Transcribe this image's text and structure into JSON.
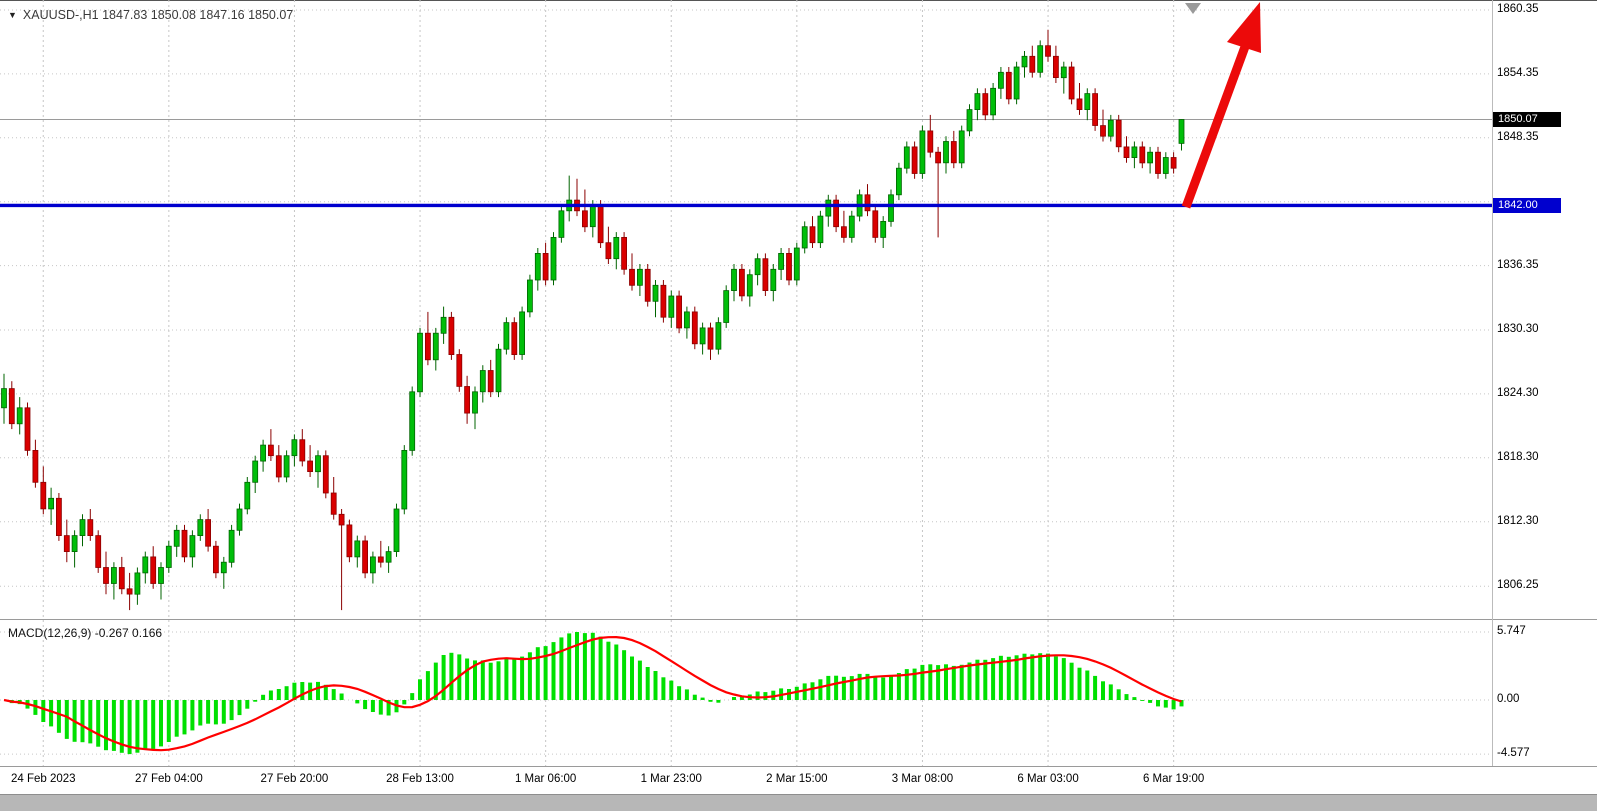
{
  "header": {
    "dropdown_icon": "▼",
    "title": "XAUUSD-,H1  1847.83 1850.08 1847.16 1850.07"
  },
  "macd_label": "MACD(12,26,9) -0.267 0.166",
  "chart_data": {
    "type": "candlestick",
    "symbol": "XAUUSD-",
    "timeframe": "H1",
    "title": "XAUUSD-,H1",
    "last_ohlc": {
      "open": 1847.83,
      "high": 1850.08,
      "low": 1847.16,
      "close": 1850.07
    },
    "current_price_label": "1850.07",
    "y_ticks": [
      "1860.35",
      "1854.35",
      "1848.35",
      "1836.35",
      "1830.30",
      "1824.30",
      "1818.30",
      "1812.30",
      "1806.25"
    ],
    "y_grid_extra": 1842.35,
    "y_range": [
      1803.5,
      1861.5
    ],
    "hline": {
      "label": "1842.00",
      "price": 1842.0,
      "color": "#0000CE"
    },
    "x_labels": [
      "24 Feb 2023",
      "27 Feb 04:00",
      "27 Feb 20:00",
      "28 Feb 13:00",
      "1 Mar 06:00",
      "1 Mar 23:00",
      "2 Mar 15:00",
      "3 Mar 08:00",
      "6 Mar 03:00",
      "6 Mar 19:00"
    ],
    "bars_per_label": 16,
    "label_start_index": 5,
    "candles": [
      [
        1823.0,
        1826.2,
        1821.5,
        1824.8
      ],
      [
        1824.8,
        1825.5,
        1821.0,
        1821.5
      ],
      [
        1821.5,
        1824.0,
        1820.5,
        1823.0
      ],
      [
        1823.0,
        1823.5,
        1818.5,
        1819.0
      ],
      [
        1819.0,
        1820.0,
        1815.5,
        1816.0
      ],
      [
        1816.0,
        1817.5,
        1813.0,
        1813.5
      ],
      [
        1813.5,
        1815.5,
        1812.0,
        1814.5
      ],
      [
        1814.5,
        1815.0,
        1810.5,
        1811.0
      ],
      [
        1811.0,
        1812.5,
        1808.5,
        1809.5
      ],
      [
        1809.5,
        1811.5,
        1808.0,
        1811.0
      ],
      [
        1811.0,
        1813.0,
        1810.0,
        1812.5
      ],
      [
        1812.5,
        1813.5,
        1810.5,
        1811.0
      ],
      [
        1811.0,
        1811.5,
        1807.5,
        1808.0
      ],
      [
        1808.0,
        1809.5,
        1805.5,
        1806.5
      ],
      [
        1806.5,
        1808.5,
        1805.0,
        1808.0
      ],
      [
        1808.0,
        1809.0,
        1805.5,
        1806.0
      ],
      [
        1806.0,
        1807.5,
        1804.0,
        1805.5
      ],
      [
        1805.5,
        1808.0,
        1804.5,
        1807.5
      ],
      [
        1807.5,
        1809.5,
        1806.5,
        1809.0
      ],
      [
        1809.0,
        1810.0,
        1806.0,
        1806.5
      ],
      [
        1806.5,
        1808.5,
        1805.0,
        1808.0
      ],
      [
        1808.0,
        1810.5,
        1807.5,
        1810.0
      ],
      [
        1810.0,
        1812.0,
        1809.0,
        1811.5
      ],
      [
        1811.5,
        1812.0,
        1808.5,
        1809.0
      ],
      [
        1809.0,
        1811.5,
        1808.0,
        1811.0
      ],
      [
        1811.0,
        1813.0,
        1810.5,
        1812.5
      ],
      [
        1812.5,
        1813.5,
        1809.5,
        1810.0
      ],
      [
        1810.0,
        1810.5,
        1807.0,
        1807.5
      ],
      [
        1807.5,
        1809.0,
        1806.0,
        1808.5
      ],
      [
        1808.5,
        1812.0,
        1808.0,
        1811.5
      ],
      [
        1811.5,
        1814.0,
        1811.0,
        1813.5
      ],
      [
        1813.5,
        1816.5,
        1813.0,
        1816.0
      ],
      [
        1816.0,
        1818.5,
        1815.0,
        1818.0
      ],
      [
        1818.0,
        1820.0,
        1817.0,
        1819.5
      ],
      [
        1819.5,
        1821.0,
        1818.0,
        1818.5
      ],
      [
        1818.5,
        1819.5,
        1816.0,
        1816.5
      ],
      [
        1816.5,
        1819.0,
        1816.0,
        1818.5
      ],
      [
        1818.5,
        1820.5,
        1817.5,
        1820.0
      ],
      [
        1820.0,
        1821.0,
        1817.5,
        1818.0
      ],
      [
        1818.0,
        1819.5,
        1816.5,
        1817.0
      ],
      [
        1817.0,
        1819.0,
        1815.5,
        1818.5
      ],
      [
        1818.5,
        1819.0,
        1814.5,
        1815.0
      ],
      [
        1815.0,
        1816.5,
        1812.5,
        1813.0
      ],
      [
        1813.0,
        1813.5,
        1804.0,
        1812.0
      ],
      [
        1812.0,
        1812.5,
        1808.5,
        1809.0
      ],
      [
        1809.0,
        1811.0,
        1808.0,
        1810.5
      ],
      [
        1810.5,
        1811.0,
        1807.0,
        1807.5
      ],
      [
        1807.5,
        1809.5,
        1806.5,
        1809.0
      ],
      [
        1809.0,
        1810.5,
        1808.0,
        1808.5
      ],
      [
        1808.5,
        1810.0,
        1807.5,
        1809.5
      ],
      [
        1809.5,
        1814.0,
        1809.0,
        1813.5
      ],
      [
        1813.5,
        1819.5,
        1813.0,
        1819.0
      ],
      [
        1819.0,
        1825.0,
        1818.5,
        1824.5
      ],
      [
        1824.5,
        1830.5,
        1824.0,
        1830.0
      ],
      [
        1830.0,
        1832.0,
        1827.0,
        1827.5
      ],
      [
        1827.5,
        1830.5,
        1826.5,
        1830.0
      ],
      [
        1830.0,
        1832.5,
        1829.0,
        1831.5
      ],
      [
        1831.5,
        1832.0,
        1827.5,
        1828.0
      ],
      [
        1828.0,
        1828.5,
        1824.5,
        1825.0
      ],
      [
        1825.0,
        1826.0,
        1821.5,
        1822.5
      ],
      [
        1822.5,
        1825.0,
        1821.0,
        1824.5
      ],
      [
        1824.5,
        1827.0,
        1823.5,
        1826.5
      ],
      [
        1826.5,
        1827.5,
        1824.0,
        1824.5
      ],
      [
        1824.5,
        1829.0,
        1824.0,
        1828.5
      ],
      [
        1828.5,
        1831.5,
        1828.0,
        1831.0
      ],
      [
        1831.0,
        1831.5,
        1827.5,
        1828.0
      ],
      [
        1828.0,
        1832.5,
        1827.5,
        1832.0
      ],
      [
        1832.0,
        1835.5,
        1831.5,
        1835.0
      ],
      [
        1835.0,
        1838.0,
        1834.0,
        1837.5
      ],
      [
        1837.5,
        1838.5,
        1834.5,
        1835.0
      ],
      [
        1835.0,
        1839.5,
        1834.5,
        1839.0
      ],
      [
        1839.0,
        1842.0,
        1838.5,
        1841.5
      ],
      [
        1841.5,
        1844.8,
        1840.5,
        1842.5
      ],
      [
        1842.5,
        1844.5,
        1841.0,
        1841.5
      ],
      [
        1841.5,
        1843.5,
        1839.5,
        1840.0
      ],
      [
        1840.0,
        1842.5,
        1839.0,
        1842.0
      ],
      [
        1842.0,
        1842.5,
        1838.0,
        1838.5
      ],
      [
        1838.5,
        1840.0,
        1836.5,
        1837.0
      ],
      [
        1837.0,
        1839.5,
        1836.0,
        1839.0
      ],
      [
        1839.0,
        1839.5,
        1835.5,
        1836.0
      ],
      [
        1836.0,
        1837.5,
        1834.0,
        1834.5
      ],
      [
        1834.5,
        1836.5,
        1833.5,
        1836.0
      ],
      [
        1836.0,
        1836.5,
        1832.5,
        1833.0
      ],
      [
        1833.0,
        1835.0,
        1831.5,
        1834.5
      ],
      [
        1834.5,
        1835.0,
        1831.0,
        1831.5
      ],
      [
        1831.5,
        1834.0,
        1830.5,
        1833.5
      ],
      [
        1833.5,
        1834.0,
        1830.0,
        1830.5
      ],
      [
        1830.5,
        1832.5,
        1829.5,
        1832.0
      ],
      [
        1832.0,
        1832.5,
        1828.5,
        1829.0
      ],
      [
        1829.0,
        1831.0,
        1828.0,
        1830.5
      ],
      [
        1830.5,
        1831.0,
        1827.5,
        1828.5
      ],
      [
        1828.5,
        1831.5,
        1828.0,
        1831.0
      ],
      [
        1831.0,
        1834.5,
        1830.5,
        1834.0
      ],
      [
        1834.0,
        1836.5,
        1833.0,
        1836.0
      ],
      [
        1836.0,
        1836.5,
        1833.0,
        1833.5
      ],
      [
        1833.5,
        1836.0,
        1832.5,
        1835.5
      ],
      [
        1835.5,
        1837.5,
        1834.5,
        1837.0
      ],
      [
        1837.0,
        1837.5,
        1833.5,
        1834.0
      ],
      [
        1834.0,
        1836.5,
        1833.0,
        1836.0
      ],
      [
        1836.0,
        1838.0,
        1835.0,
        1837.5
      ],
      [
        1837.5,
        1838.0,
        1834.5,
        1835.0
      ],
      [
        1835.0,
        1838.5,
        1834.5,
        1838.0
      ],
      [
        1838.0,
        1840.5,
        1837.5,
        1840.0
      ],
      [
        1840.0,
        1841.0,
        1838.0,
        1838.5
      ],
      [
        1838.5,
        1841.5,
        1838.0,
        1841.0
      ],
      [
        1841.0,
        1843.0,
        1840.0,
        1842.5
      ],
      [
        1842.5,
        1843.0,
        1839.5,
        1840.0
      ],
      [
        1840.0,
        1841.5,
        1838.5,
        1839.0
      ],
      [
        1839.0,
        1841.5,
        1838.5,
        1841.0
      ],
      [
        1841.0,
        1843.5,
        1840.5,
        1843.0
      ],
      [
        1843.0,
        1844.0,
        1841.0,
        1841.5
      ],
      [
        1841.5,
        1842.0,
        1838.5,
        1839.0
      ],
      [
        1839.0,
        1841.0,
        1838.0,
        1840.5
      ],
      [
        1840.5,
        1843.5,
        1840.0,
        1843.0
      ],
      [
        1843.0,
        1846.0,
        1842.5,
        1845.5
      ],
      [
        1845.5,
        1848.0,
        1845.0,
        1847.5
      ],
      [
        1847.5,
        1848.0,
        1844.5,
        1845.0
      ],
      [
        1845.0,
        1849.5,
        1844.5,
        1849.0
      ],
      [
        1849.0,
        1850.5,
        1846.5,
        1847.0
      ],
      [
        1847.0,
        1847.5,
        1839.0,
        1846.0
      ],
      [
        1846.0,
        1848.5,
        1845.0,
        1848.0
      ],
      [
        1848.0,
        1849.0,
        1845.5,
        1846.0
      ],
      [
        1846.0,
        1849.5,
        1845.5,
        1849.0
      ],
      [
        1849.0,
        1851.5,
        1848.5,
        1851.0
      ],
      [
        1851.0,
        1853.0,
        1850.0,
        1852.5
      ],
      [
        1852.5,
        1853.0,
        1850.0,
        1850.5
      ],
      [
        1850.5,
        1853.5,
        1850.0,
        1853.0
      ],
      [
        1853.0,
        1855.0,
        1852.0,
        1854.5
      ],
      [
        1854.5,
        1855.0,
        1851.5,
        1852.0
      ],
      [
        1852.0,
        1855.5,
        1851.5,
        1855.0
      ],
      [
        1855.0,
        1856.5,
        1854.0,
        1856.0
      ],
      [
        1856.0,
        1857.0,
        1854.0,
        1854.5
      ],
      [
        1854.5,
        1857.5,
        1854.0,
        1857.0
      ],
      [
        1857.0,
        1858.5,
        1855.5,
        1856.0
      ],
      [
        1856.0,
        1857.0,
        1853.5,
        1854.0
      ],
      [
        1854.0,
        1855.5,
        1852.5,
        1855.0
      ],
      [
        1855.0,
        1855.5,
        1851.5,
        1852.0
      ],
      [
        1852.0,
        1853.5,
        1850.5,
        1851.0
      ],
      [
        1851.0,
        1853.0,
        1850.0,
        1852.5
      ],
      [
        1852.5,
        1853.0,
        1849.0,
        1849.5
      ],
      [
        1849.5,
        1851.0,
        1848.0,
        1848.5
      ],
      [
        1848.5,
        1850.5,
        1848.0,
        1850.0
      ],
      [
        1850.0,
        1850.5,
        1847.0,
        1847.5
      ],
      [
        1847.5,
        1848.5,
        1846.0,
        1846.5
      ],
      [
        1846.5,
        1848.0,
        1845.5,
        1847.5
      ],
      [
        1847.5,
        1848.0,
        1845.5,
        1846.0
      ],
      [
        1846.0,
        1847.5,
        1845.0,
        1847.0
      ],
      [
        1847.0,
        1847.5,
        1844.5,
        1845.0
      ],
      [
        1845.0,
        1847.0,
        1844.5,
        1846.5
      ],
      [
        1846.5,
        1847.0,
        1845.0,
        1845.5
      ],
      [
        1847.83,
        1850.08,
        1847.16,
        1850.07
      ]
    ],
    "macd": {
      "params": "12,26,9",
      "readout_macd": -0.267,
      "readout_signal": 0.166,
      "scale_top": "5.747",
      "scale_zero": "0.00",
      "scale_bottom": "-4.577",
      "top_value": 5.747,
      "bottom_value": -4.577
    },
    "colors": {
      "bull": "#00BE0A",
      "bull_edge": "#006400",
      "bear": "#D90000",
      "bear_edge": "#8B0000",
      "hist": "#00E000",
      "signal": "#FF0000",
      "grid": "#C6C6C6",
      "bid_line": "#9a9a9a",
      "hline_blue": "#0000CE",
      "arrow_red": "#EC0A0A"
    },
    "annotations": {
      "arrow_color": "#EC0A0A",
      "arrow_description": "thick red up arrow from 1842 line to top right",
      "shift_marker_color": "#9a9a9a"
    }
  }
}
